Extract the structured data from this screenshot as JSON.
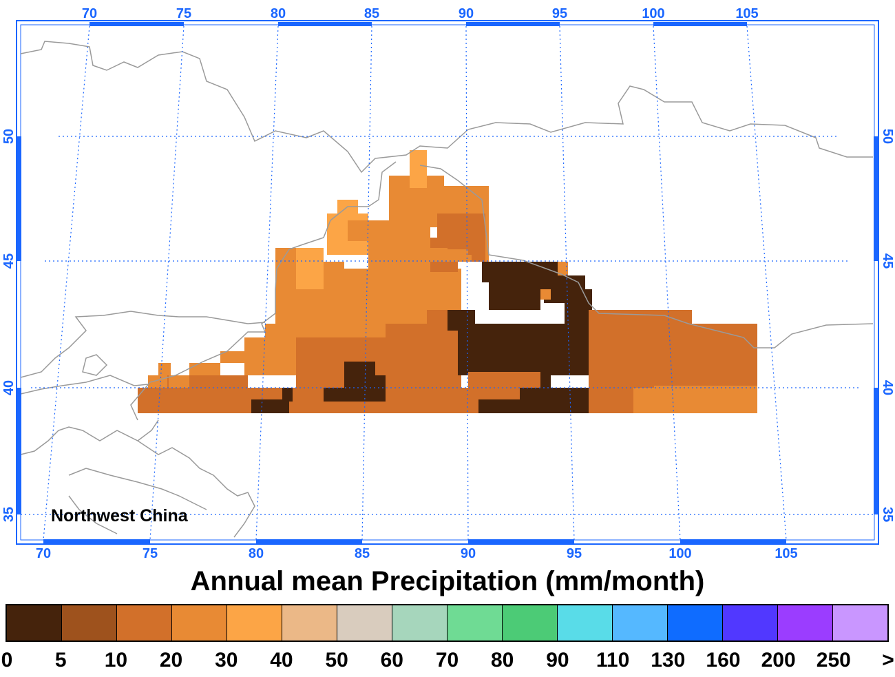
{
  "map": {
    "region_label": "Northwest China",
    "lon_ticks_top": [
      "70",
      "75",
      "80",
      "85",
      "90",
      "95",
      "100",
      "105"
    ],
    "lon_ticks_bottom": [
      "70",
      "75",
      "80",
      "85",
      "90",
      "95",
      "100",
      "105"
    ],
    "lat_ticks_left": [
      "50",
      "45",
      "40",
      "35"
    ],
    "lat_ticks_right": [
      "50",
      "45",
      "40",
      "35"
    ],
    "grid_color": "#1a66ff",
    "border_color": "#9a9a9a",
    "legend_bins": [
      {
        "min": "0",
        "max": "5",
        "color": "#45230c"
      },
      {
        "min": "5",
        "max": "10",
        "color": "#9e521d"
      },
      {
        "min": "10",
        "max": "20",
        "color": "#d2702a"
      },
      {
        "min": "20",
        "max": "30",
        "color": "#e88a34"
      },
      {
        "min": "30",
        "max": "40",
        "color": "#fca546"
      },
      {
        "min": "40",
        "max": "50",
        "color": "#ebb887"
      },
      {
        "min": "50",
        "max": "60",
        "color": "#d9ccbe"
      },
      {
        "min": "60",
        "max": "70",
        "color": "#a6d6bc"
      },
      {
        "min": "70",
        "max": "80",
        "color": "#6fdb94"
      },
      {
        "min": "80",
        "max": "90",
        "color": "#4ccb76"
      },
      {
        "min": "90",
        "max": "110",
        "color": "#59dce8"
      },
      {
        "min": "110",
        "max": "130",
        "color": "#55b8ff"
      },
      {
        "min": "130",
        "max": "160",
        "color": "#0f6cff"
      },
      {
        "min": "160",
        "max": "200",
        "color": "#5138ff"
      },
      {
        "min": "200",
        "max": "250",
        "color": "#9b3dff"
      },
      {
        "min": "250",
        "max": ">",
        "color": "#c996ff"
      }
    ]
  },
  "title": "Annual mean Precipitation (mm/month)",
  "colorbar_labels": [
    "0",
    "5",
    "10",
    "20",
    "30",
    "40",
    "50",
    "60",
    "70",
    "80",
    "90",
    "110",
    "130",
    "160",
    "200",
    "250",
    ">"
  ]
}
